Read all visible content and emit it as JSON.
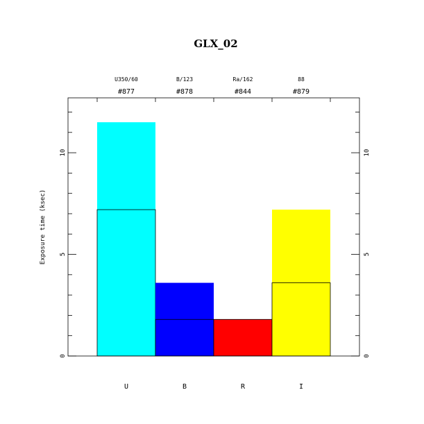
{
  "chart_data": {
    "type": "bar",
    "title": "GLX_02",
    "xlabel": "",
    "ylabel": "Exposure time (ksec)",
    "ylim": [
      0,
      12.7
    ],
    "categories": [
      "U",
      "B",
      "R",
      "I"
    ],
    "top_labels": [
      {
        "filter": "U350/60",
        "number": "#877"
      },
      {
        "filter": "B/123",
        "number": "#878"
      },
      {
        "filter": "Ra/162",
        "number": "#844"
      },
      {
        "filter": "88",
        "number": "#879"
      }
    ],
    "series": [
      {
        "values": [
          11.5,
          3.6,
          1.8,
          7.2
        ]
      },
      {
        "values": [
          7.2,
          1.8,
          1.8,
          3.6
        ]
      }
    ],
    "colors": [
      "#00ffff",
      "#0000ff",
      "#ff0000",
      "#ffff00"
    ],
    "y_ticks": [
      0,
      5,
      10
    ],
    "minor_tick_step": 1
  }
}
